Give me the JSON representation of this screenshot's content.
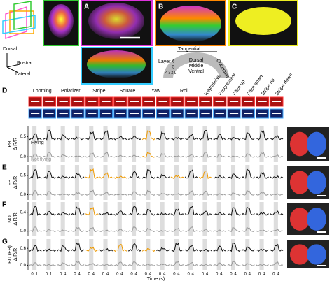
{
  "panel_labels": [
    "A",
    "B",
    "C",
    "D",
    "E",
    "F",
    "G"
  ],
  "orientation": [
    "Dorsal",
    "Rostral",
    "Lateral"
  ],
  "schematic": {
    "tangential": "Tangential",
    "layer": "Layer",
    "layers": [
      "6",
      "5",
      "4",
      "3",
      "2",
      "1"
    ],
    "zones": [
      "Dorsal",
      "Middle",
      "Ventral"
    ],
    "columnar": "Columnar"
  },
  "stimuli": {
    "grouped": [
      "Looming",
      "Polarizer",
      "Stripe",
      "Square",
      "Yaw",
      "Roll"
    ],
    "single": [
      "Regressive",
      "Progressive",
      "Pitch up",
      "Pitch down",
      "Stripe up",
      "Stripe down"
    ]
  },
  "legend": [
    "Flying",
    "Not flying"
  ],
  "traces": [
    {
      "region": "PB",
      "ylabel": "Δ R/R",
      "yticks": [
        "0.5",
        "0.0"
      ]
    },
    {
      "region": "FB",
      "ylabel": "Δ R/R",
      "yticks": [
        "0.5",
        "0.0"
      ]
    },
    {
      "region": "NO",
      "ylabel": "Δ R/R",
      "yticks": [
        "0.4",
        "0.0"
      ]
    },
    {
      "region": "BU (EB)",
      "ylabel": "Δ R/R",
      "yticks": [
        "0.6",
        "0.0"
      ]
    }
  ],
  "x_ticks": [
    [
      "0",
      "1"
    ],
    [
      "0",
      "1"
    ],
    [
      "0",
      "4"
    ],
    [
      "0",
      "4"
    ],
    [
      "0",
      "4"
    ],
    [
      "0",
      "4"
    ],
    [
      "0",
      "4"
    ],
    [
      "0",
      "4"
    ],
    [
      "0",
      "4"
    ],
    [
      "0",
      "4"
    ],
    [
      "0",
      "4"
    ],
    [
      "0",
      "4"
    ],
    [
      "0",
      "4"
    ],
    [
      "0",
      "4"
    ],
    [
      "0",
      "4"
    ],
    [
      "0",
      "4"
    ],
    [
      "0",
      "4"
    ],
    [
      "0",
      "4"
    ]
  ],
  "x_label": "Time (s)"
}
